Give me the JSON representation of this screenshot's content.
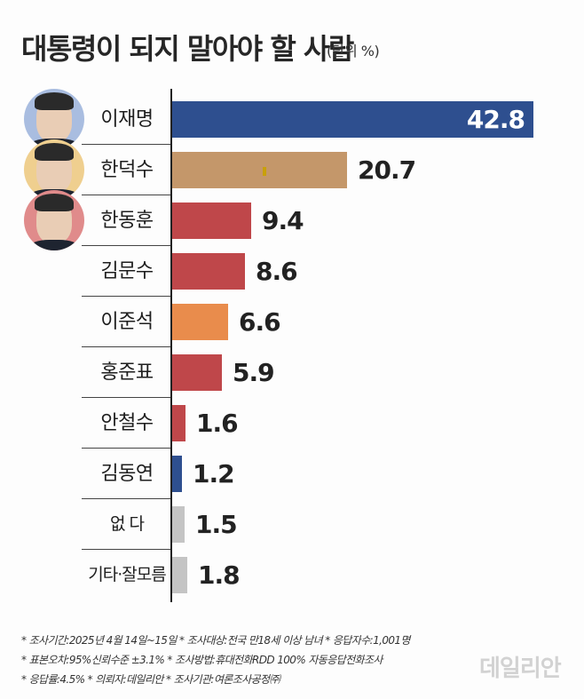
{
  "title": "대통령이 되지 말아야 할 사람",
  "unit": "(단위 %)",
  "colors": {
    "blue": "#2e4f8f",
    "tan": "#c4976a",
    "red": "#bf474a",
    "orange": "#e98c4c",
    "gray": "#c4c4c4",
    "marker": "#c9a00a"
  },
  "chart_data": {
    "type": "bar",
    "orientation": "horizontal",
    "title": "대통령이 되지 말아야 할 사람",
    "unit": "%",
    "categories": [
      "이재명",
      "한덕수",
      "한동훈",
      "김문수",
      "이준석",
      "홍준표",
      "안철수",
      "김동연",
      "없다",
      "기타·잘모름"
    ],
    "values": [
      42.8,
      20.7,
      9.4,
      8.6,
      6.6,
      5.9,
      1.6,
      1.2,
      1.5,
      1.8
    ],
    "xlim": [
      0,
      42.8
    ],
    "grid": false,
    "legend": "none"
  },
  "rows": [
    {
      "name": "이재명",
      "value": "42.8",
      "num": 42.8,
      "color": "#2e4f8f",
      "avatar_bg": "#a9bde0",
      "inside": true
    },
    {
      "name": "한덕수",
      "value": "20.7",
      "num": 20.7,
      "color": "#c4976a",
      "avatar_bg": "#efcf8f",
      "inside": false
    },
    {
      "name": "한동훈",
      "value": "9.4",
      "num": 9.4,
      "color": "#bf474a",
      "avatar_bg": "#e08b8b",
      "inside": false
    },
    {
      "name": "김문수",
      "value": "8.6",
      "num": 8.6,
      "color": "#bf474a",
      "inside": false
    },
    {
      "name": "이준석",
      "value": "6.6",
      "num": 6.6,
      "color": "#e98c4c",
      "inside": false
    },
    {
      "name": "홍준표",
      "value": "5.9",
      "num": 5.9,
      "color": "#bf474a",
      "inside": false
    },
    {
      "name": "안철수",
      "value": "1.6",
      "num": 1.6,
      "color": "#bf474a",
      "inside": false
    },
    {
      "name": "김동연",
      "value": "1.2",
      "num": 1.2,
      "color": "#2e4f8f",
      "inside": false
    },
    {
      "name": "없    다",
      "value": "1.5",
      "num": 1.5,
      "color": "#c4c4c4",
      "inside": false
    },
    {
      "name": "기타·잘모름",
      "value": "1.8",
      "num": 1.8,
      "color": "#c4c4c4",
      "inside": false
    }
  ],
  "notes": [
    "* 조사기간:2025년 4월 14일~15일  * 조사대상:전국 만18세 이상 남녀  * 응답자수:1,001명",
    "* 표본오차:95%신뢰수준 ±3.1%  * 조사방법:휴대전화RDD 100% 자동응답전화조사",
    "* 응답률:4.5%  * 의뢰자:데일리안  * 조사기관:여론조사공정㈜"
  ],
  "logo": "데일리안"
}
